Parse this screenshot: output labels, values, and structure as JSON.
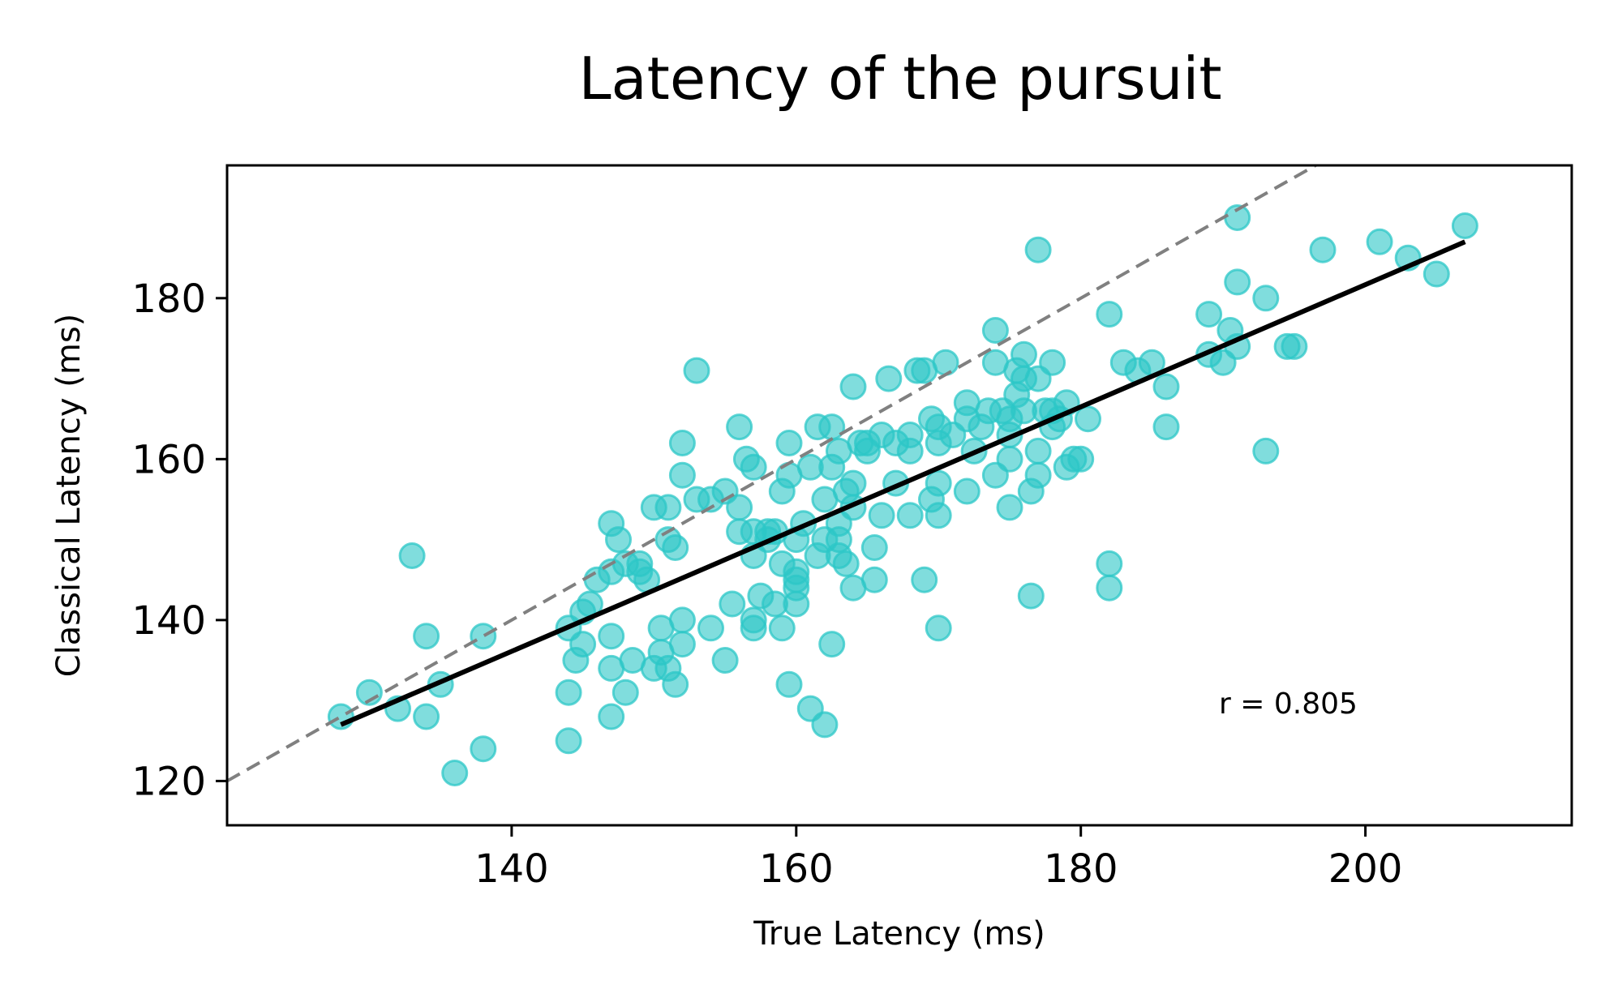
{
  "chart_data": {
    "type": "scatter",
    "title": "Latency of the pursuit",
    "xlabel": "True Latency (ms)",
    "ylabel": "Classical Latency (ms)",
    "xlim": [
      120,
      214.5
    ],
    "ylim": [
      114.5,
      196.5
    ],
    "xticks": [
      140,
      160,
      180,
      200
    ],
    "yticks": [
      120,
      140,
      160,
      180
    ],
    "grid": false,
    "annotation": "r = 0.805",
    "colors": {
      "points": "#2cc7c7",
      "fit_line": "#000000",
      "identity_line": "#808080"
    },
    "identity_line": {
      "x": [
        120,
        197
      ],
      "y": [
        120,
        197
      ]
    },
    "fit_line": {
      "x": [
        128,
        207
      ],
      "y": [
        127,
        187
      ]
    },
    "points": [
      [
        128,
        128
      ],
      [
        130,
        131
      ],
      [
        132,
        129
      ],
      [
        133,
        148
      ],
      [
        134,
        138
      ],
      [
        134,
        128
      ],
      [
        135,
        132
      ],
      [
        136,
        121
      ],
      [
        138,
        138
      ],
      [
        138,
        124
      ],
      [
        144,
        131
      ],
      [
        144,
        125
      ],
      [
        144,
        139
      ],
      [
        144.5,
        135
      ],
      [
        145,
        137
      ],
      [
        145,
        141
      ],
      [
        145.5,
        142
      ],
      [
        146,
        145
      ],
      [
        147,
        152
      ],
      [
        147,
        146
      ],
      [
        147,
        138
      ],
      [
        147,
        134
      ],
      [
        147,
        128
      ],
      [
        147.5,
        150
      ],
      [
        148,
        147
      ],
      [
        148,
        131
      ],
      [
        148.5,
        135
      ],
      [
        149,
        147
      ],
      [
        149,
        146
      ],
      [
        149.5,
        145
      ],
      [
        150,
        154
      ],
      [
        150,
        134
      ],
      [
        150.5,
        139
      ],
      [
        150.5,
        136
      ],
      [
        151,
        154
      ],
      [
        151,
        134
      ],
      [
        151,
        150
      ],
      [
        151.5,
        149
      ],
      [
        152,
        158
      ],
      [
        152,
        162
      ],
      [
        152,
        140
      ],
      [
        152,
        137
      ],
      [
        151.5,
        132
      ],
      [
        153,
        171
      ],
      [
        153,
        155
      ],
      [
        154,
        155
      ],
      [
        154,
        139
      ],
      [
        155,
        156
      ],
      [
        155,
        135
      ],
      [
        155.5,
        142
      ],
      [
        156,
        164
      ],
      [
        156,
        154
      ],
      [
        156,
        151
      ],
      [
        156.5,
        160
      ],
      [
        157,
        148
      ],
      [
        157,
        151
      ],
      [
        157,
        159
      ],
      [
        157,
        140
      ],
      [
        157,
        139
      ],
      [
        157.5,
        143
      ],
      [
        158,
        151
      ],
      [
        158,
        150
      ],
      [
        158.5,
        151
      ],
      [
        158.5,
        142
      ],
      [
        159,
        156
      ],
      [
        159,
        147
      ],
      [
        159,
        139
      ],
      [
        159.5,
        162
      ],
      [
        159.5,
        158
      ],
      [
        160,
        146
      ],
      [
        160,
        145
      ],
      [
        160,
        144
      ],
      [
        160,
        142
      ],
      [
        159.5,
        132
      ],
      [
        160,
        150
      ],
      [
        160.5,
        152
      ],
      [
        161,
        159
      ],
      [
        161,
        129
      ],
      [
        161.5,
        164
      ],
      [
        161.5,
        148
      ],
      [
        162,
        127
      ],
      [
        162,
        155
      ],
      [
        162,
        150
      ],
      [
        162.5,
        164
      ],
      [
        162.5,
        159
      ],
      [
        162.5,
        137
      ],
      [
        163,
        161
      ],
      [
        163,
        150
      ],
      [
        163,
        148
      ],
      [
        163,
        152
      ],
      [
        163.5,
        147
      ],
      [
        163.5,
        156
      ],
      [
        164,
        157
      ],
      [
        164,
        154
      ],
      [
        164,
        169
      ],
      [
        164,
        144
      ],
      [
        164.5,
        162
      ],
      [
        165,
        162
      ],
      [
        165,
        161
      ],
      [
        165.5,
        149
      ],
      [
        165.5,
        145
      ],
      [
        166,
        153
      ],
      [
        166,
        163
      ],
      [
        166.5,
        170
      ],
      [
        167,
        157
      ],
      [
        167,
        162
      ],
      [
        168,
        163
      ],
      [
        168,
        161
      ],
      [
        168,
        153
      ],
      [
        168.5,
        171
      ],
      [
        169,
        171
      ],
      [
        169,
        145
      ],
      [
        169.5,
        155
      ],
      [
        169.5,
        165
      ],
      [
        170,
        153
      ],
      [
        170,
        164
      ],
      [
        170,
        162
      ],
      [
        170,
        157
      ],
      [
        170,
        139
      ],
      [
        170.5,
        172
      ],
      [
        171,
        163
      ],
      [
        172,
        165
      ],
      [
        172,
        156
      ],
      [
        172,
        167
      ],
      [
        172.5,
        161
      ],
      [
        173,
        164
      ],
      [
        173.5,
        166
      ],
      [
        174,
        176
      ],
      [
        174,
        158
      ],
      [
        174,
        172
      ],
      [
        174.5,
        166
      ],
      [
        175,
        163
      ],
      [
        175,
        160
      ],
      [
        175,
        154
      ],
      [
        175,
        165
      ],
      [
        175.5,
        171
      ],
      [
        175.5,
        168
      ],
      [
        176,
        173
      ],
      [
        176,
        170
      ],
      [
        176,
        166
      ],
      [
        176.5,
        156
      ],
      [
        176.5,
        143
      ],
      [
        177,
        186
      ],
      [
        177,
        161
      ],
      [
        177,
        158
      ],
      [
        177,
        170
      ],
      [
        177.5,
        166
      ],
      [
        178,
        164
      ],
      [
        178,
        166
      ],
      [
        178,
        172
      ],
      [
        178.5,
        165
      ],
      [
        179,
        167
      ],
      [
        179,
        159
      ],
      [
        179.5,
        160
      ],
      [
        180,
        160
      ],
      [
        180.5,
        165
      ],
      [
        182,
        178
      ],
      [
        182,
        147
      ],
      [
        182,
        144
      ],
      [
        183,
        172
      ],
      [
        184,
        171
      ],
      [
        185,
        172
      ],
      [
        186,
        169
      ],
      [
        186,
        164
      ],
      [
        189,
        173
      ],
      [
        189,
        178
      ],
      [
        190,
        172
      ],
      [
        190.5,
        176
      ],
      [
        191,
        174
      ],
      [
        191,
        182
      ],
      [
        191,
        190
      ],
      [
        193,
        180
      ],
      [
        193,
        161
      ],
      [
        194.5,
        174
      ],
      [
        195,
        174
      ],
      [
        197,
        186
      ],
      [
        201,
        187
      ],
      [
        203,
        185
      ],
      [
        205,
        183
      ],
      [
        207,
        189
      ]
    ]
  }
}
